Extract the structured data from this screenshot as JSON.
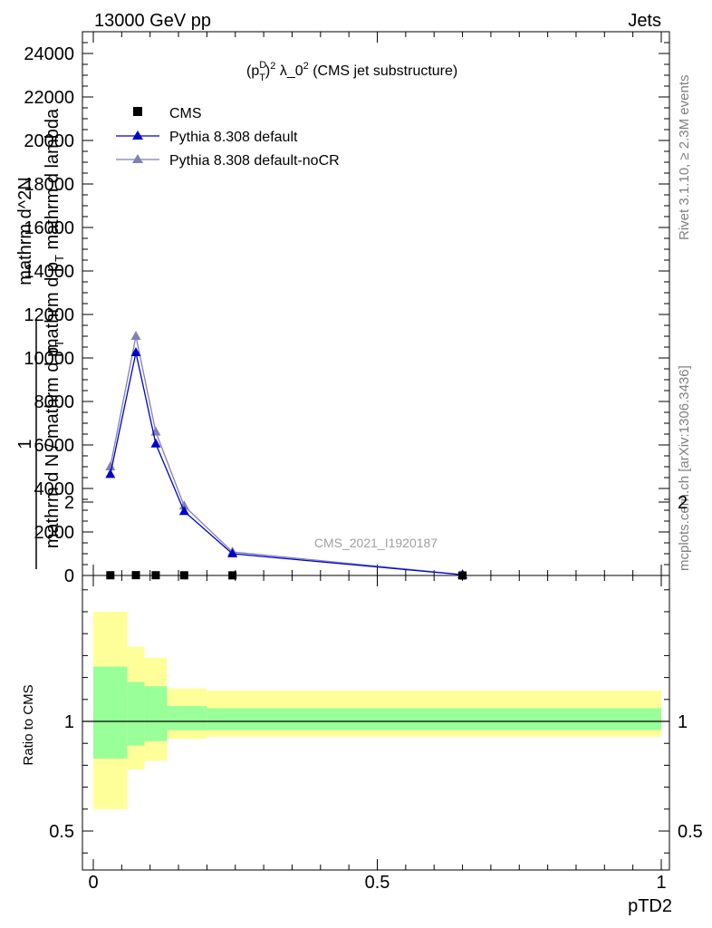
{
  "header": {
    "left": "13000 GeV pp",
    "right": "Jets"
  },
  "side_labels": {
    "rivet": "Rivet 3.1.10, ≥ 2.3M events",
    "mcplots": "mcplots.cern.ch [arXiv:1306.3436]"
  },
  "watermark": "CMS_2021_I1920187",
  "colors": {
    "cms": "#000000",
    "pythia_default": "#0000cc",
    "pythia_nocr": "#8080b3",
    "band_inner": "#99ff99",
    "band_outer": "#ffff99"
  },
  "chart_data": [
    {
      "type": "line",
      "title_main": "(p",
      "title_sup1": "D",
      "title_sub1": "T",
      "title_paren": ")",
      "title_sup2": "2",
      "title_rest": " λ_0",
      "title_sup3": "2",
      "title_tail": " (CMS jet substructure)",
      "ylabel_top": "mathrm d^2N",
      "ylabel_mid1": "mathrm d p",
      "ylabel_mid1_sub": "T",
      "ylabel_mid2": " mathrm d lambda",
      "ylabel_one": "1",
      "ylabel_bottom": "mathrm d N / mathrm d p",
      "ylabel_bottom_sub": "T",
      "xlim": [
        0,
        1
      ],
      "ylim": [
        0,
        25000
      ],
      "yticks": [
        0,
        2000,
        4000,
        6000,
        8000,
        10000,
        12000,
        14000,
        16000,
        18000,
        20000,
        22000,
        24000
      ],
      "ytick_labels": [
        "0",
        "2000",
        "4000",
        "6000",
        "8000",
        "10000",
        "12000",
        "14000",
        "16000",
        "18000",
        "20000",
        "22000",
        "24000"
      ],
      "legend_position": "top-left",
      "series": [
        {
          "name": "CMS",
          "marker": "square",
          "x": [
            0.03,
            0.075,
            0.11,
            0.16,
            0.245,
            0.65
          ],
          "y": [
            10,
            15,
            12,
            8,
            5,
            1
          ]
        },
        {
          "name": "Pythia 8.308 default",
          "marker": "triangle",
          "x": [
            0.03,
            0.075,
            0.11,
            0.16,
            0.245,
            0.65
          ],
          "y": [
            4650,
            10250,
            6050,
            2950,
            1000,
            30
          ]
        },
        {
          "name": "Pythia 8.308 default-noCR",
          "marker": "triangle",
          "x": [
            0.03,
            0.075,
            0.11,
            0.16,
            0.245,
            0.65
          ],
          "y": [
            5000,
            11000,
            6600,
            3200,
            1080,
            40
          ]
        }
      ]
    },
    {
      "type": "area",
      "ylabel": "Ratio to CMS",
      "xlabel": "pTD2",
      "xlim": [
        0,
        1
      ],
      "ylim": [
        0.3,
        2.25
      ],
      "xticks": [
        0,
        0.5,
        1
      ],
      "xtick_labels": [
        "0",
        "0.5",
        "1"
      ],
      "yticks": [
        0.5,
        1,
        2
      ],
      "ytick_labels": [
        "0.5",
        "1",
        "2"
      ],
      "reference_line": 1,
      "bins": [
        {
          "x0": 0.0,
          "x1": 0.06,
          "inner": [
            0.83,
            1.25
          ],
          "outer": [
            0.6,
            1.5
          ]
        },
        {
          "x0": 0.06,
          "x1": 0.09,
          "inner": [
            0.89,
            1.18
          ],
          "outer": [
            0.78,
            1.34
          ]
        },
        {
          "x0": 0.09,
          "x1": 0.13,
          "inner": [
            0.91,
            1.16
          ],
          "outer": [
            0.82,
            1.29
          ]
        },
        {
          "x0": 0.13,
          "x1": 0.2,
          "inner": [
            0.96,
            1.07
          ],
          "outer": [
            0.92,
            1.15
          ]
        },
        {
          "x0": 0.2,
          "x1": 1.0,
          "inner": [
            0.96,
            1.06
          ],
          "outer": [
            0.93,
            1.14
          ]
        }
      ]
    }
  ]
}
